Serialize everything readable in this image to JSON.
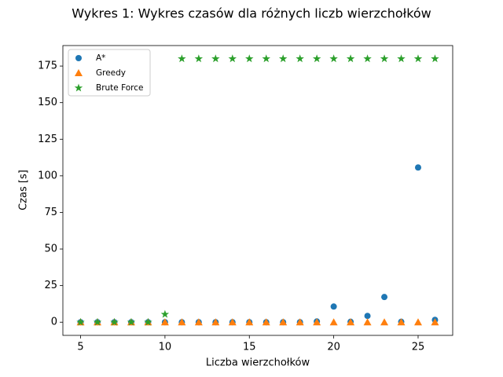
{
  "chart_data": {
    "type": "scatter",
    "title": "Wykres 1: Wykres czasów dla różnych liczb wierzchołków",
    "xlabel": "Liczba wierzchołków",
    "ylabel": "Czas [s]",
    "x": [
      5,
      6,
      7,
      8,
      9,
      10,
      11,
      12,
      13,
      14,
      15,
      16,
      17,
      18,
      19,
      20,
      21,
      22,
      23,
      24,
      25,
      26
    ],
    "series": [
      {
        "name": "A*",
        "color": "#1f77b4",
        "marker": "circle",
        "values": [
          0,
          0,
          0,
          0,
          0,
          0,
          0,
          0,
          0,
          0,
          0,
          0,
          0,
          0,
          0.5,
          10.7,
          0.3,
          4.3,
          17.2,
          0.3,
          105.7,
          1.6
        ]
      },
      {
        "name": "Greedy",
        "color": "#ff7f0e",
        "marker": "triangle",
        "values": [
          0,
          0,
          0,
          0,
          0,
          0,
          0,
          0,
          0,
          0,
          0,
          0,
          0,
          0,
          0,
          0,
          0,
          0,
          0,
          0,
          0,
          0
        ]
      },
      {
        "name": "Brute Force",
        "color": "#2ca02c",
        "marker": "star",
        "values": [
          0,
          0,
          0,
          0,
          0,
          5.4,
          180,
          180,
          180,
          180,
          180,
          180,
          180,
          180,
          180,
          180,
          180,
          180,
          180,
          180,
          180,
          180
        ]
      }
    ],
    "xlim": [
      3.95,
      27.05
    ],
    "ylim": [
      -9,
      189
    ],
    "xticks": [
      5,
      10,
      15,
      20,
      25
    ],
    "yticks": [
      0,
      25,
      50,
      75,
      100,
      125,
      150,
      175
    ],
    "grid": false,
    "legend": "upper left"
  }
}
